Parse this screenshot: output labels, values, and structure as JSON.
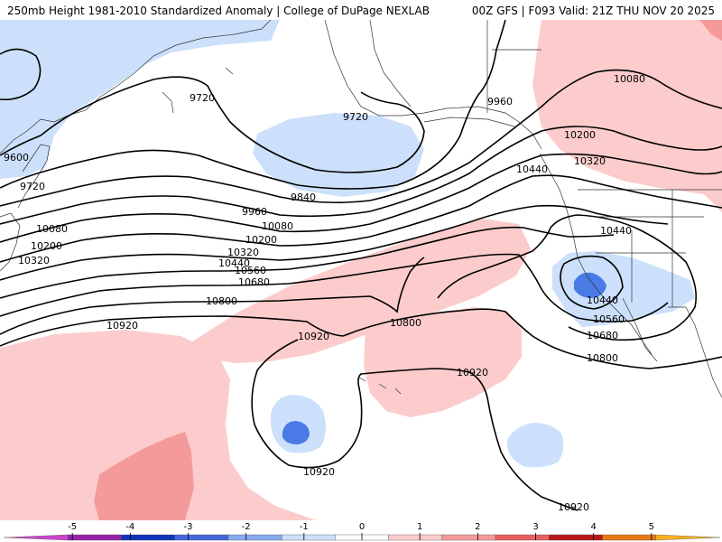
{
  "header": {
    "left_title": "250mb Height 1981-2010 Standardized Anomaly | College of DuPage NEXLAB",
    "right_title": "00Z GFS | F093 Valid: 21Z THU NOV 20 2025"
  },
  "map": {
    "contour_labels": [
      "9600",
      "9720",
      "9720",
      "9720",
      "9840",
      "9960",
      "9960",
      "10080",
      "10080",
      "10080",
      "10200",
      "10200",
      "10200",
      "10320",
      "10320",
      "10320",
      "10440",
      "10440",
      "10440",
      "10440",
      "10560",
      "10560",
      "10680",
      "10680",
      "10800",
      "10800",
      "10800",
      "10920",
      "10920",
      "10920",
      "10920",
      "10920"
    ]
  },
  "legend": {
    "tick_labels": [
      "-5",
      "-4",
      "-3",
      "-2",
      "-1",
      "0",
      "1",
      "2",
      "3",
      "4",
      "5"
    ],
    "colors": [
      "#cc44cc",
      "#9922aa",
      "#1133bb",
      "#4466dd",
      "#88aaee",
      "#cce0fb",
      "#ffffff",
      "#fccccc",
      "#f49a9a",
      "#e86060",
      "#b81818",
      "#e87810",
      "#f8b020"
    ]
  }
}
